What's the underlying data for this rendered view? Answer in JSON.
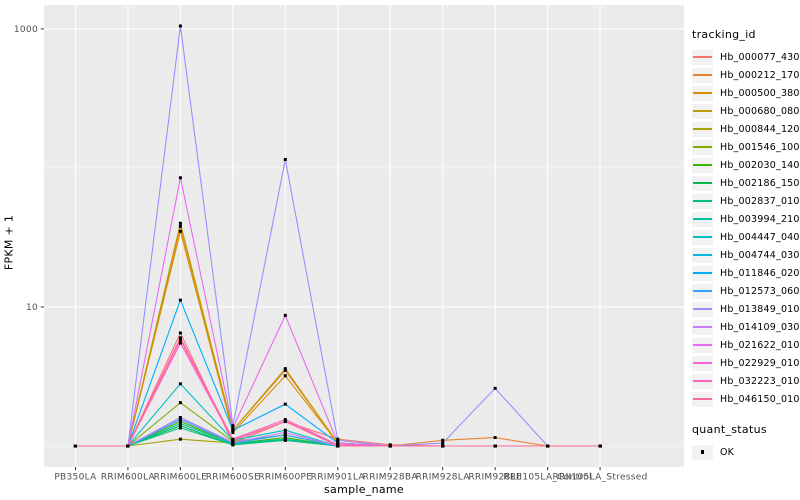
{
  "chart_data": {
    "type": "line",
    "title": "",
    "xlabel": "sample_name",
    "ylabel": "FPKM + 1",
    "y_scale": "log10",
    "legend_position": "right",
    "grid": true,
    "panel_bg": "#EBEBEB",
    "grid_color": "#FFFFFF",
    "tick_color": "#333333",
    "tick_label_color": "#4D4D4D",
    "point_color": "#000000",
    "ylim_log10": [
      -0.151,
      3.172
    ],
    "y_ticks": [
      {
        "label": "1000",
        "value": 1000
      },
      {
        "label": "10",
        "value": 10
      }
    ],
    "y_minor_gridlines": [
      100,
      1
    ],
    "categories": [
      "PB350LA",
      "RRIM600LA",
      "RRIM600LE",
      "RRIM600SE",
      "RRIM600PE",
      "RRIM901LA",
      "RRIM928BA",
      "RRIM928LA",
      "RRIM928LE",
      "RRII105LA_Control",
      "RRII105LA_Stressed"
    ],
    "series": [
      {
        "name": "Hb_000077_430",
        "color": "#F8766D",
        "values": [
          1,
          1,
          6.5,
          1.05,
          1.5,
          1.12,
          1.02,
          1,
          1,
          1,
          1
        ]
      },
      {
        "name": "Hb_000212_170",
        "color": "#EA8331",
        "values": [
          1,
          1,
          38,
          1.3,
          3.5,
          1.05,
          1,
          1.1,
          1.15,
          1,
          1
        ]
      },
      {
        "name": "Hb_000500_380",
        "color": "#D89000",
        "values": [
          1,
          1,
          35,
          1.25,
          3.2,
          1.05,
          1,
          1,
          1,
          1,
          1
        ]
      },
      {
        "name": "Hb_000680_080",
        "color": "#C09B00",
        "values": [
          1,
          1,
          40,
          1.3,
          3.6,
          1.05,
          1,
          1,
          1,
          1,
          1
        ]
      },
      {
        "name": "Hb_000844_120",
        "color": "#A3A500",
        "values": [
          1,
          1,
          1.12,
          1.05,
          1.1,
          1,
          1,
          1,
          1,
          1,
          1
        ]
      },
      {
        "name": "Hb_001546_100",
        "color": "#7CAE00",
        "values": [
          1,
          1,
          2.05,
          1.08,
          1.2,
          1,
          1,
          1,
          1,
          1,
          1
        ]
      },
      {
        "name": "Hb_002030_140",
        "color": "#39B600",
        "values": [
          1,
          1,
          1.5,
          1.04,
          1.15,
          1,
          1,
          1,
          1,
          1,
          1
        ]
      },
      {
        "name": "Hb_002186_150",
        "color": "#00BB4E",
        "values": [
          1,
          1,
          1.4,
          1.02,
          1.12,
          1,
          1,
          1,
          1,
          1,
          1
        ]
      },
      {
        "name": "Hb_002837_010",
        "color": "#00BF7D",
        "values": [
          1,
          1,
          1.35,
          1.02,
          1.1,
          1,
          1,
          1,
          1,
          1,
          1
        ]
      },
      {
        "name": "Hb_003994_210",
        "color": "#00C1A3",
        "values": [
          1,
          1,
          1.45,
          1.04,
          1.12,
          1,
          1,
          1,
          1,
          1,
          1
        ]
      },
      {
        "name": "Hb_004447_040",
        "color": "#00BFC4",
        "values": [
          1,
          1,
          2.8,
          1.1,
          1.3,
          1,
          1,
          1,
          1,
          1,
          1
        ]
      },
      {
        "name": "Hb_004744_030",
        "color": "#00B8E7",
        "values": [
          1,
          1,
          1.6,
          1.06,
          1.2,
          1,
          1,
          1,
          1,
          1,
          1
        ]
      },
      {
        "name": "Hb_011846_020",
        "color": "#00ACFC",
        "values": [
          1,
          1,
          11.2,
          1.3,
          2.0,
          1.05,
          1,
          1,
          1,
          1,
          1
        ]
      },
      {
        "name": "Hb_012573_060",
        "color": "#35A2FF",
        "values": [
          1,
          1,
          1.55,
          1.05,
          1.2,
          1,
          1,
          1,
          1,
          1,
          1
        ]
      },
      {
        "name": "Hb_013849_010",
        "color": "#9590FF",
        "values": [
          1,
          1,
          1050,
          1.4,
          115,
          1.1,
          1,
          1.05,
          2.6,
          1,
          1
        ]
      },
      {
        "name": "Hb_014109_030",
        "color": "#C77CFF",
        "values": [
          1,
          1,
          1.6,
          1.06,
          1.25,
          1,
          1,
          1,
          1,
          1,
          1
        ]
      },
      {
        "name": "Hb_021622_010",
        "color": "#E76BF3",
        "values": [
          1,
          1,
          85,
          1.35,
          8.7,
          1.05,
          1,
          1,
          1,
          1,
          1
        ]
      },
      {
        "name": "Hb_022929_010",
        "color": "#FA62DB",
        "values": [
          1,
          1,
          5.5,
          1.1,
          1.5,
          1.02,
          1,
          1,
          1,
          1,
          1
        ]
      },
      {
        "name": "Hb_032223_010",
        "color": "#FF62BC",
        "values": [
          1,
          1,
          6.0,
          1.12,
          1.55,
          1.02,
          1,
          1,
          1,
          1,
          1
        ]
      },
      {
        "name": "Hb_046150_010",
        "color": "#FF6A98",
        "values": [
          1,
          1,
          5.8,
          1.1,
          1.5,
          1,
          1,
          1,
          1,
          1,
          1
        ]
      }
    ]
  },
  "legend_tracking": {
    "title": "tracking_id"
  },
  "legend_quant": {
    "title": "quant_status",
    "items": [
      {
        "label": "OK"
      }
    ]
  }
}
